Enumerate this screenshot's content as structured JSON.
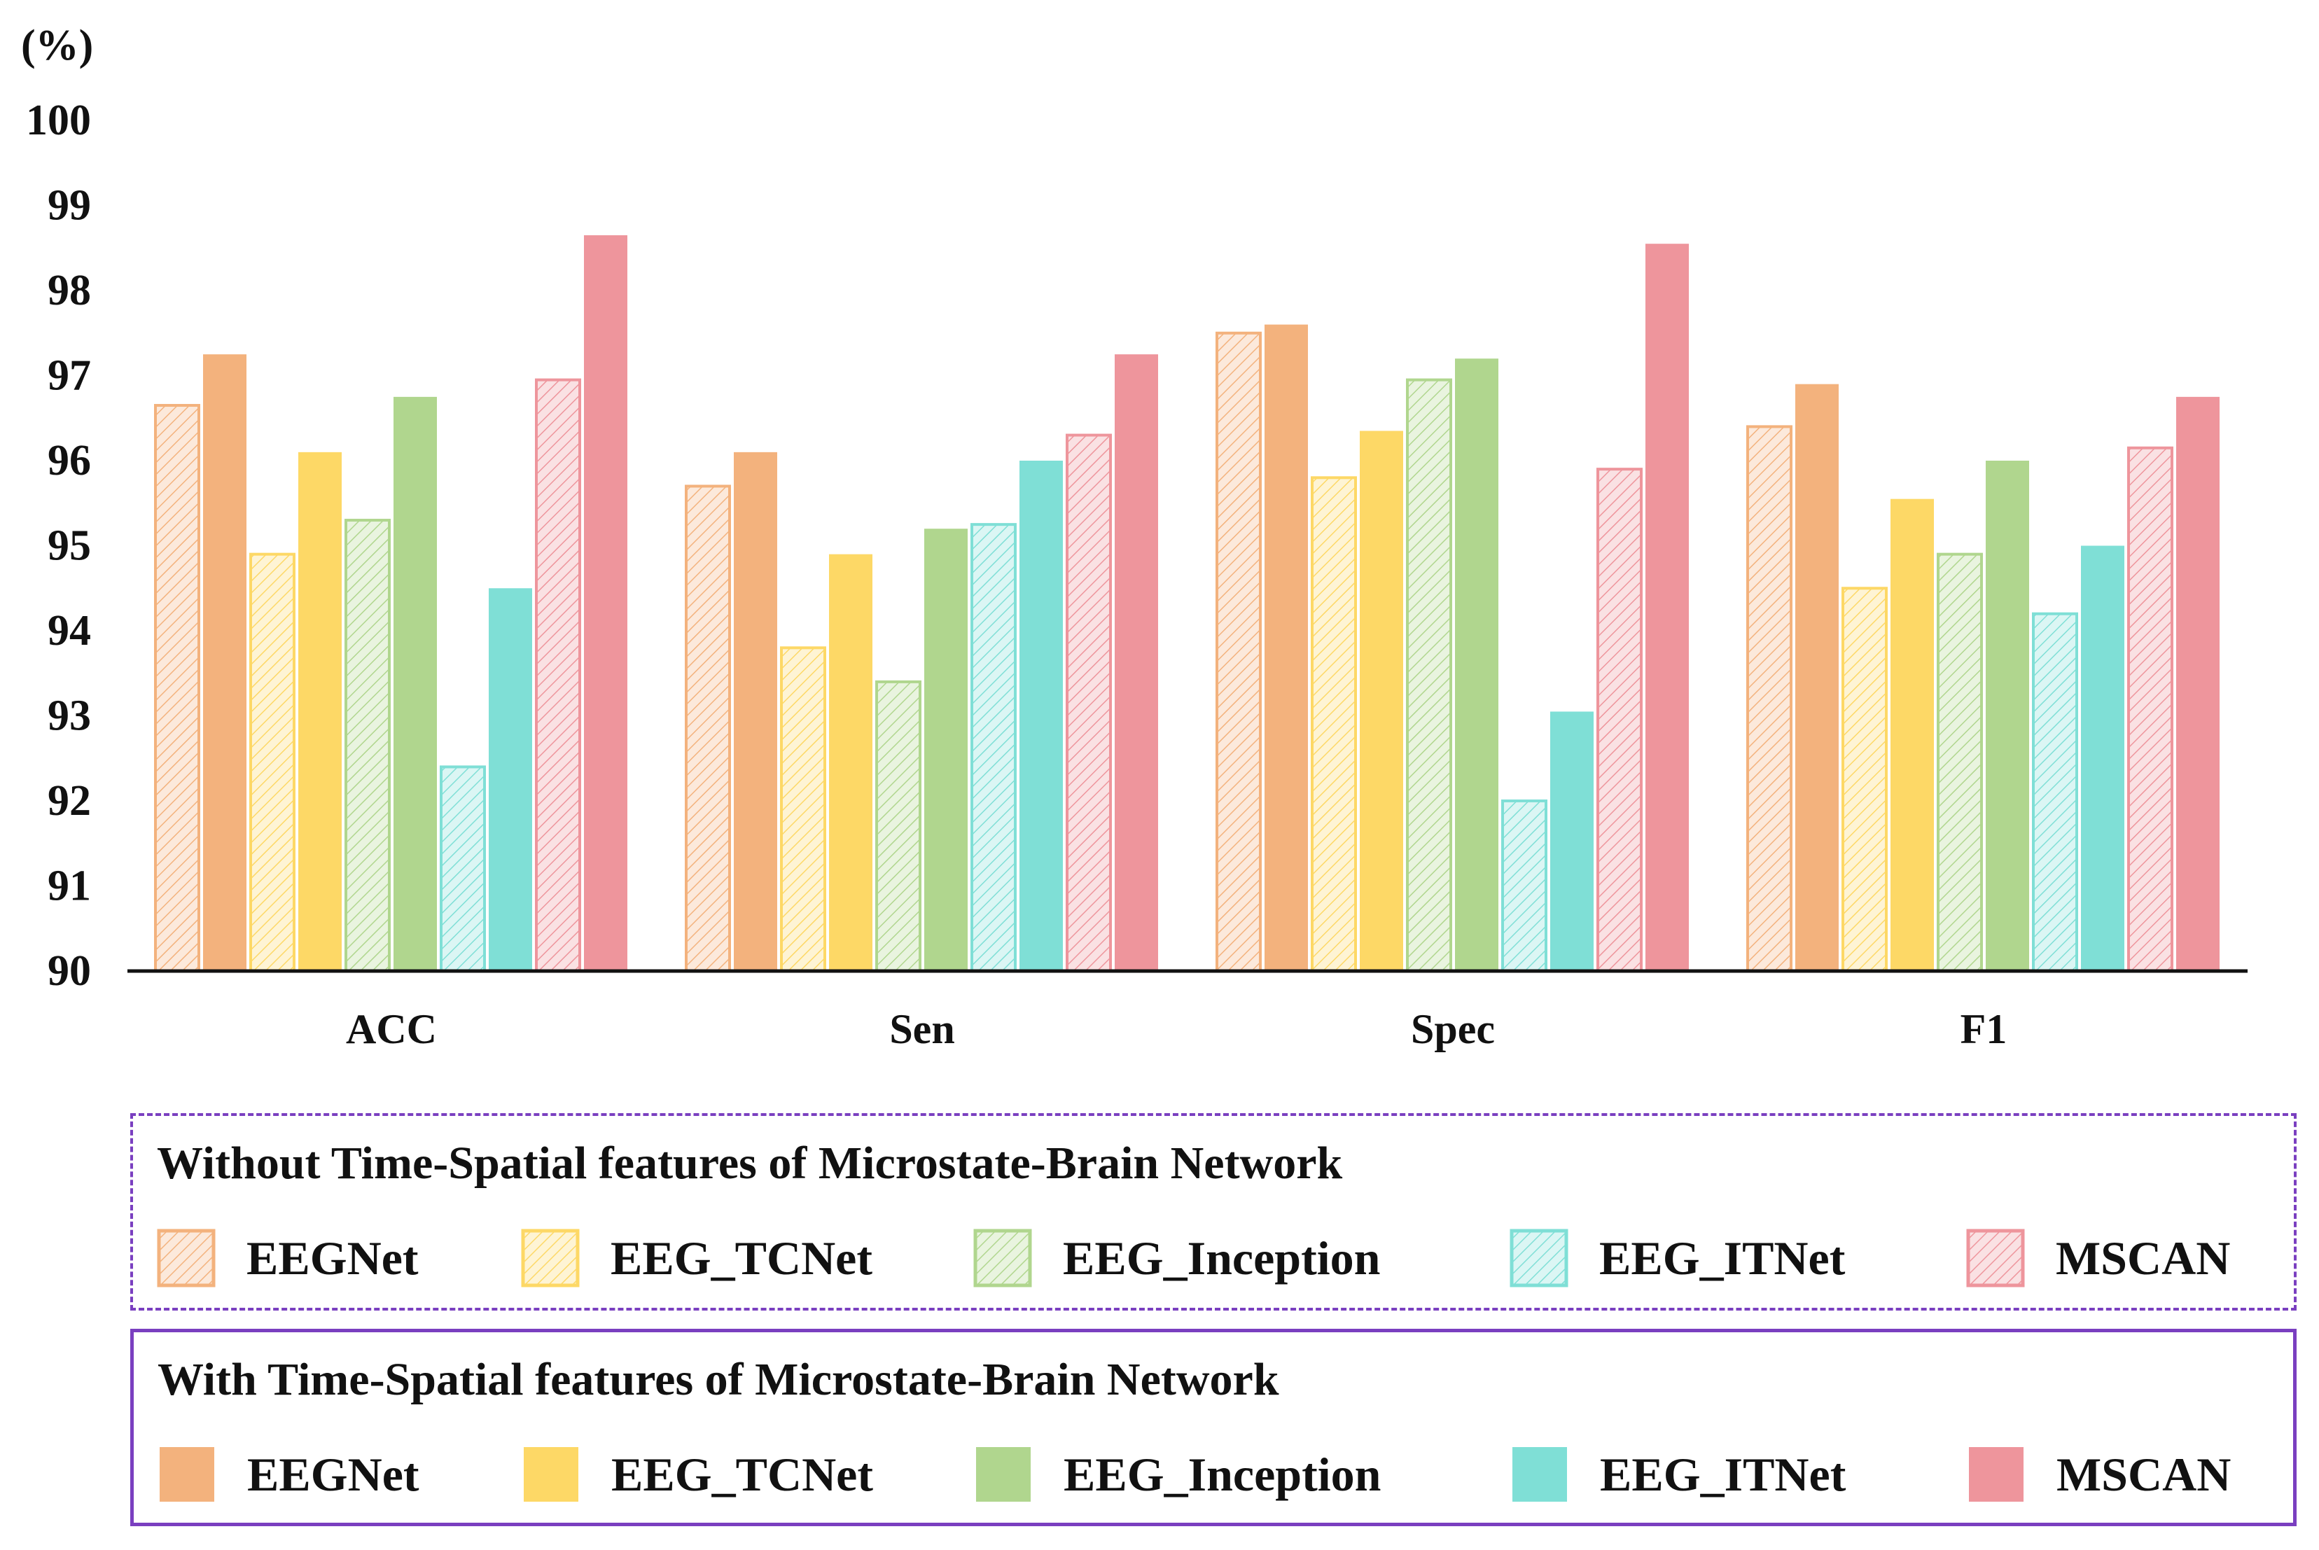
{
  "chart_data": {
    "type": "bar",
    "ylabel": "(%)",
    "ylim": [
      90,
      100
    ],
    "yticks": [
      "90",
      "91",
      "92",
      "93",
      "94",
      "95",
      "96",
      "97",
      "98",
      "99",
      "100"
    ],
    "categories": [
      "ACC",
      "Sen",
      "Spec",
      "F1"
    ],
    "series": [
      {
        "name": "EEGNet",
        "group": "without",
        "pattern": "hatched",
        "color": "#f3b27d",
        "values": [
          96.65,
          95.7,
          97.5,
          96.4
        ]
      },
      {
        "name": "EEGNet",
        "group": "with",
        "pattern": "solid",
        "color": "#f3b27d",
        "values": [
          97.25,
          96.1,
          97.6,
          96.9
        ]
      },
      {
        "name": "EEG_TCNet",
        "group": "without",
        "pattern": "hatched",
        "color": "#fdd866",
        "values": [
          94.9,
          93.8,
          95.8,
          94.5
        ]
      },
      {
        "name": "EEG_TCNet",
        "group": "with",
        "pattern": "solid",
        "color": "#fdd866",
        "values": [
          96.1,
          94.9,
          96.35,
          95.55
        ]
      },
      {
        "name": "EEG_Inception",
        "group": "without",
        "pattern": "hatched",
        "color": "#b0d68e",
        "values": [
          95.3,
          93.4,
          96.95,
          94.9
        ]
      },
      {
        "name": "EEG_Inception",
        "group": "with",
        "pattern": "solid",
        "color": "#b0d68e",
        "values": [
          96.75,
          95.2,
          97.2,
          96.0
        ]
      },
      {
        "name": "EEG_ITNet",
        "group": "without",
        "pattern": "hatched",
        "color": "#7fdfd6",
        "values": [
          92.4,
          95.25,
          92.0,
          94.2
        ]
      },
      {
        "name": "EEG_ITNet",
        "group": "with",
        "pattern": "solid",
        "color": "#7fdfd6",
        "values": [
          94.5,
          96.0,
          93.05,
          95.0
        ]
      },
      {
        "name": "MSCAN",
        "group": "without",
        "pattern": "hatched",
        "color": "#ee959c",
        "values": [
          96.95,
          96.3,
          95.9,
          96.15
        ]
      },
      {
        "name": "MSCAN",
        "group": "with",
        "pattern": "solid",
        "color": "#ee959c",
        "values": [
          98.65,
          97.25,
          98.55,
          96.75
        ]
      }
    ]
  },
  "legend": {
    "without": {
      "title": "Without Time-Spatial features of Microstate-Brain Network",
      "items": [
        {
          "label": "EEGNet",
          "color": "#f3b27d"
        },
        {
          "label": "EEG_TCNet",
          "color": "#fdd866"
        },
        {
          "label": "EEG_Inception",
          "color": "#b0d68e"
        },
        {
          "label": "EEG_ITNet",
          "color": "#7fdfd6"
        },
        {
          "label": "MSCAN",
          "color": "#ee959c"
        }
      ]
    },
    "with": {
      "title": "With Time-Spatial features of Microstate-Brain Network",
      "items": [
        {
          "label": "EEGNet",
          "color": "#f3b27d"
        },
        {
          "label": "EEG_TCNet",
          "color": "#fdd866"
        },
        {
          "label": "EEG_Inception",
          "color": "#b0d68e"
        },
        {
          "label": "EEG_ITNet",
          "color": "#7fdfd6"
        },
        {
          "label": "MSCAN",
          "color": "#ee959c"
        }
      ]
    }
  }
}
